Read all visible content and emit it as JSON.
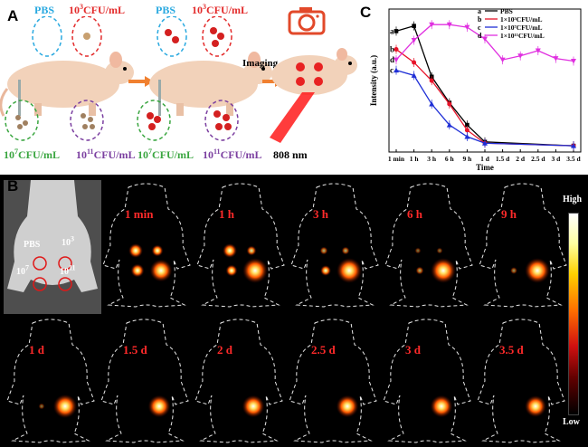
{
  "panelA": {
    "letter": "A",
    "labels": {
      "pbs": "PBS",
      "cfu3": "10",
      "cfu3_exp": "3",
      "cfu7": "10",
      "cfu7_exp": "7",
      "cfu11": "10",
      "cfu11_exp": "11",
      "unit": "CFU/mL"
    },
    "imaging": "Imaging",
    "wavelength": "808 nm",
    "colors": {
      "pbs": "#29a9e0",
      "cfu3": "#e32b2b",
      "cfu7": "#3aa640",
      "cfu11": "#7b3fa0"
    }
  },
  "panelB": {
    "letter": "B",
    "reference": {
      "pbs": "PBS",
      "cfu3": "10",
      "cfu3_exp": "3",
      "cfu7": "10",
      "cfu7_exp": "7",
      "cfu11": "10",
      "cfu11_exp": "11"
    },
    "timepoints": [
      "1 min",
      "1 h",
      "3 h",
      "6 h",
      "9 h",
      "1 d",
      "1.5 d",
      "2 d",
      "2.5 d",
      "3 d",
      "3.5 d"
    ],
    "colorbar": {
      "high": "High",
      "low": "Low"
    }
  },
  "panelC": {
    "letter": "C",
    "chart_data": {
      "type": "line",
      "xlabel": "Time",
      "ylabel": "Intensity (a.u.)",
      "categories": [
        "1 min",
        "1 h",
        "3 h",
        "6 h",
        "9 h",
        "1 d",
        "1.5 d",
        "2 d",
        "2.5 d",
        "3 d",
        "3.5 d"
      ],
      "series": [
        {
          "name": "PBS",
          "key": "a",
          "color": "#000000",
          "marker": "square",
          "values": [
            0.9,
            0.94,
            0.55,
            0.35,
            0.18,
            0.05,
            null,
            null,
            null,
            null,
            0.02
          ]
        },
        {
          "name": "1×10³CFU/mL",
          "key": "b",
          "color": "#e8142a",
          "marker": "circle",
          "values": [
            0.76,
            0.66,
            0.52,
            0.34,
            0.14,
            0.04,
            null,
            null,
            null,
            null,
            0.02
          ]
        },
        {
          "name": "1×10⁷CFU/mL",
          "key": "c",
          "color": "#1f2fd6",
          "marker": "triangle",
          "values": [
            0.6,
            0.56,
            0.34,
            0.18,
            0.09,
            0.04,
            null,
            null,
            null,
            null,
            0.02
          ]
        },
        {
          "name": "1×10¹¹CFU/mL",
          "key": "d",
          "color": "#e030e0",
          "marker": "triangle-down",
          "values": [
            0.68,
            0.83,
            0.95,
            0.95,
            0.93,
            0.84,
            0.68,
            0.71,
            0.75,
            0.69,
            0.67
          ]
        }
      ],
      "legend": "top-right",
      "grid": false
    }
  }
}
